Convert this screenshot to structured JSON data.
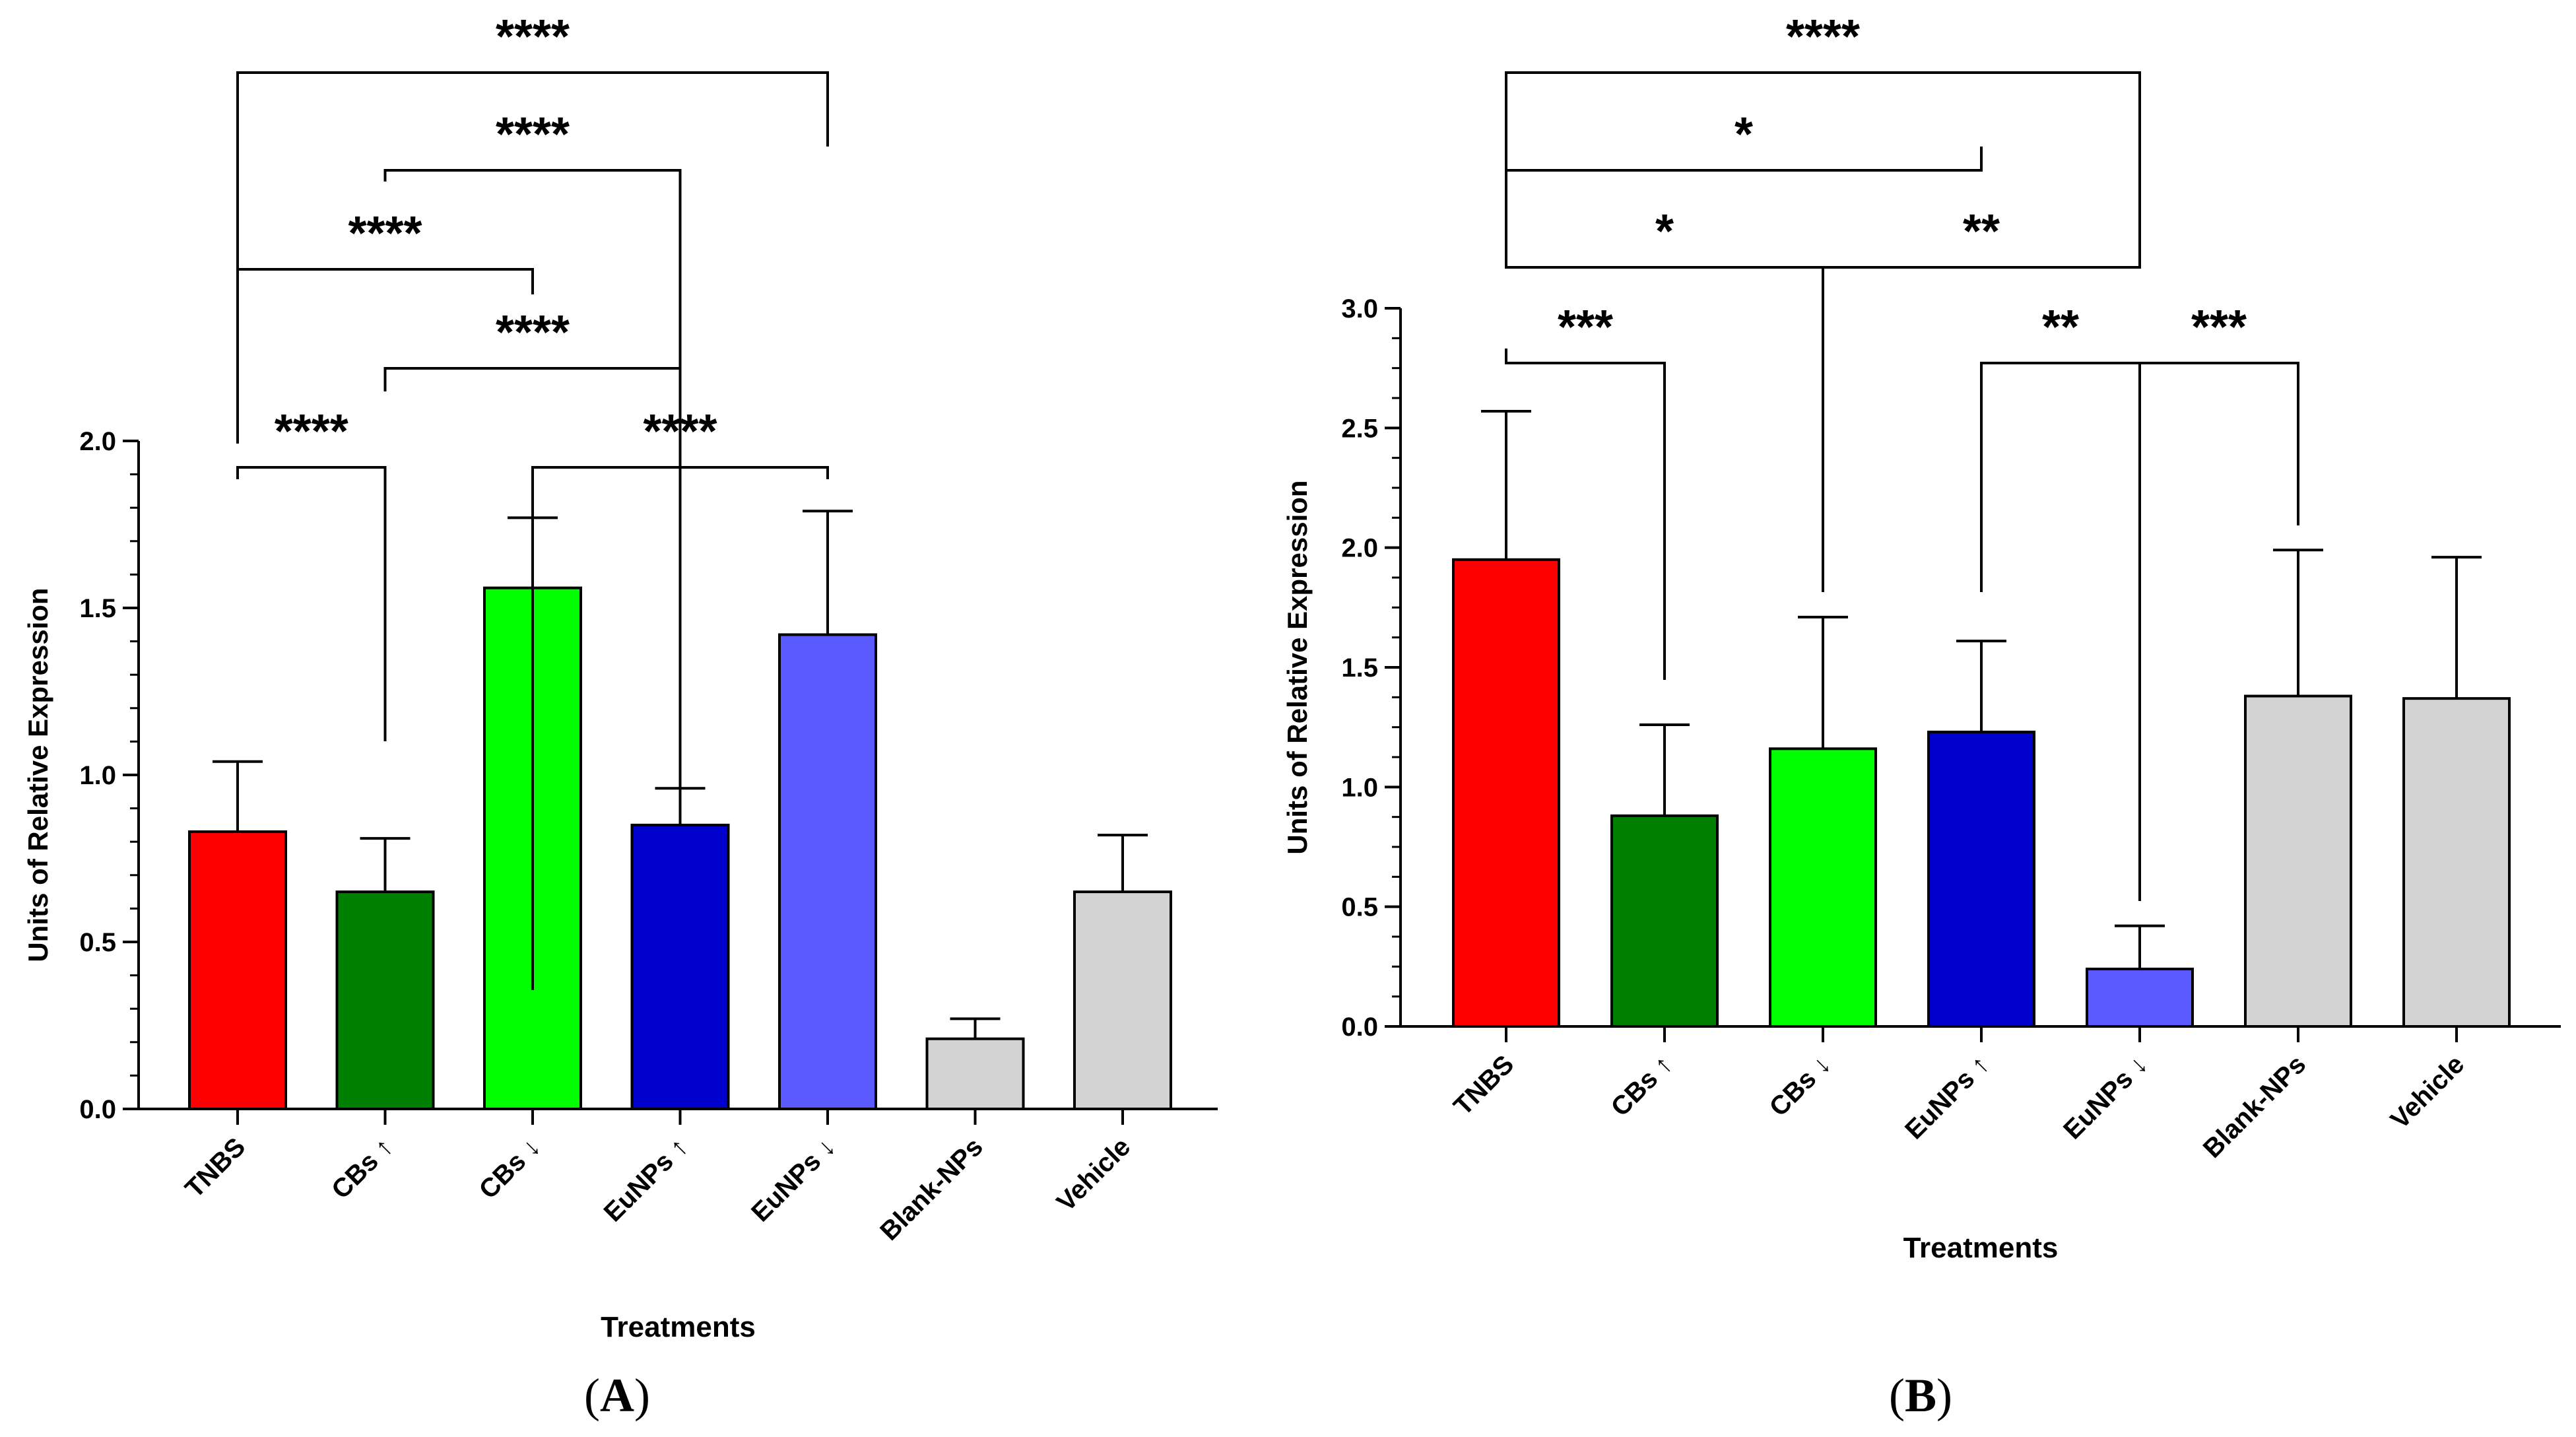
{
  "chart_data": [
    {
      "type": "bar",
      "panel_label": "A",
      "title": "",
      "xlabel": "Treatments",
      "ylabel": "Units of Relative Expression",
      "ylim": [
        0,
        2.0
      ],
      "yticks": [
        0.0,
        0.5,
        1.0,
        1.5,
        2.0
      ],
      "ytick_labels": [
        "0.0",
        "0.5",
        "1.0",
        "1.5",
        "2.0"
      ],
      "grid": false,
      "categories": [
        "TNBS",
        "CBs ↑",
        "CBs ↓",
        "EuNPs ↑",
        "EuNPs ↓",
        "Blank-NPs",
        "Vehicle"
      ],
      "values": [
        0.83,
        0.65,
        1.56,
        0.85,
        1.42,
        0.21,
        0.65
      ],
      "errors": [
        0.21,
        0.16,
        0.21,
        0.11,
        0.37,
        0.06,
        0.17
      ],
      "colors": [
        "#ff0000",
        "#008000",
        "#00ff00",
        "#0000cc",
        "#5a5aff",
        "#d3d3d3",
        "#d3d3d3"
      ],
      "significance": [
        {
          "from": 0,
          "to": 4,
          "label": "****"
        },
        {
          "from": 1,
          "to": 3,
          "label": "****"
        },
        {
          "from": 0,
          "to": 2,
          "label": "****"
        },
        {
          "from": 1,
          "to": 0,
          "label": "****"
        },
        {
          "from": 3,
          "to": 1,
          "label": "****"
        },
        {
          "from": 4,
          "to": 2,
          "label": "****"
        }
      ]
    },
    {
      "type": "bar",
      "panel_label": "B",
      "title": "",
      "xlabel": "Treatments",
      "ylabel": "Units of Relative Expression",
      "ylim": [
        0,
        3.0
      ],
      "yticks": [
        0.0,
        0.5,
        1.0,
        1.5,
        2.0,
        2.5,
        3.0
      ],
      "ytick_labels": [
        "0.0",
        "0.5",
        "1.0",
        "1.5",
        "2.0",
        "2.5",
        "3.0"
      ],
      "grid": false,
      "categories": [
        "TNBS",
        "CBs ↑",
        "CBs ↓",
        "EuNPs ↑",
        "EuNPs ↓",
        "Blank-NPs",
        "Vehicle"
      ],
      "values": [
        1.95,
        0.88,
        1.16,
        1.23,
        0.24,
        1.38,
        1.37
      ],
      "errors": [
        0.62,
        0.38,
        0.55,
        0.38,
        0.18,
        0.61,
        0.59
      ],
      "colors": [
        "#ff0000",
        "#008000",
        "#00ff00",
        "#0000cc",
        "#5a5aff",
        "#d3d3d3",
        "#d3d3d3"
      ],
      "significance": [
        {
          "from": 0,
          "to": 4,
          "label": "****"
        },
        {
          "from": 0,
          "to": 3,
          "label": "*"
        },
        {
          "from": 0,
          "to": 2,
          "label": "*"
        },
        {
          "from": 2,
          "to": 4,
          "label": "**"
        },
        {
          "from": 0,
          "to": 1,
          "label": "***"
        },
        {
          "from": 3,
          "to": 4,
          "label": "**"
        },
        {
          "from": 4,
          "to": 5,
          "label": "***"
        }
      ]
    }
  ]
}
